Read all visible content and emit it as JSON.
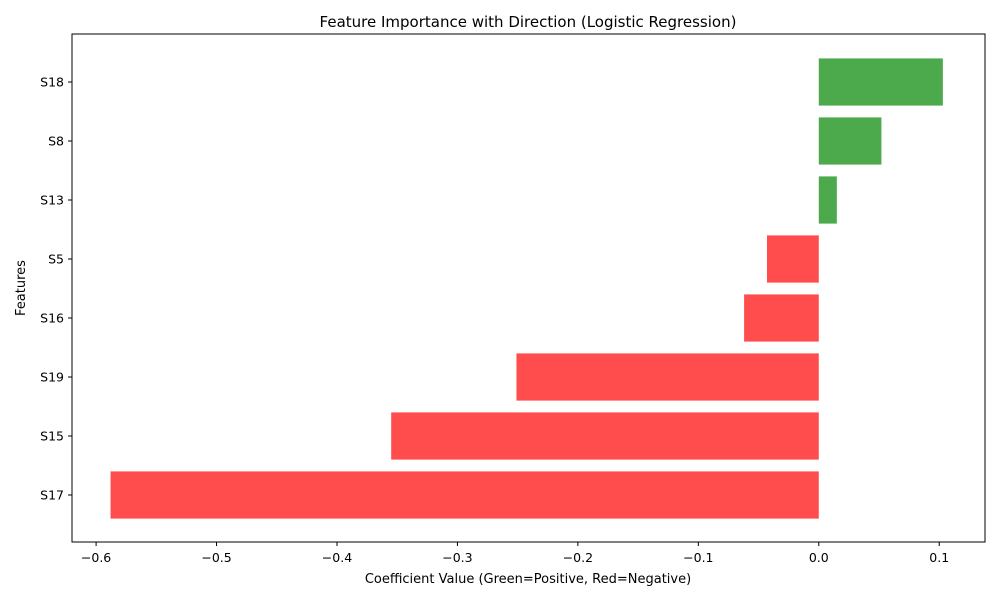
{
  "chart_data": {
    "type": "bar",
    "orientation": "horizontal",
    "title": "Feature Importance with Direction (Logistic Regression)",
    "xlabel": "Coefficient Value (Green=Positive, Red=Negative)",
    "ylabel": "Features",
    "categories": [
      "S18",
      "S8",
      "S13",
      "S5",
      "S16",
      "S19",
      "S15",
      "S17"
    ],
    "values": [
      0.103,
      0.052,
      0.015,
      -0.043,
      -0.062,
      -0.251,
      -0.355,
      -0.588
    ],
    "xlim": [
      -0.62,
      0.138
    ],
    "xticks": [
      -0.6,
      -0.5,
      -0.4,
      -0.3,
      -0.2,
      -0.1,
      0.0,
      0.1
    ],
    "xtick_labels": [
      "−0.6",
      "−0.5",
      "−0.4",
      "−0.3",
      "−0.2",
      "−0.1",
      "0.0",
      "0.1"
    ],
    "colors": {
      "positive": "#4caa4c",
      "negative": "#ff4c4c"
    },
    "grid": false,
    "legend": "none"
  }
}
